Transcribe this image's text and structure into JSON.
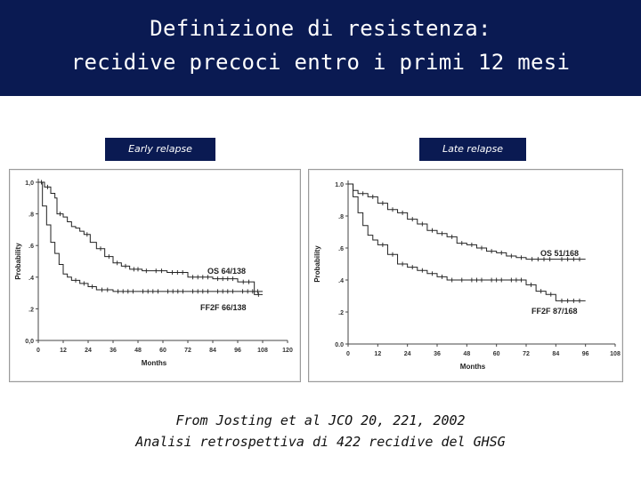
{
  "title": {
    "line1": "Definizione di resistenza:",
    "line2": "recidive precoci entro i primi 12 mesi"
  },
  "panel_labels": {
    "left": "Early relapse",
    "right": "Late relapse"
  },
  "source": {
    "line1": "From Josting et al JCO 20, 221, 2002",
    "line2": "Analisi retrospettiva di 422 recidive del GHSG"
  },
  "colors": {
    "header_bg": "#0a1a52",
    "header_text": "#ffffff",
    "curve": "#222222"
  },
  "chart_data": [
    {
      "type": "line",
      "title": "Early relapse",
      "xlabel": "Months",
      "ylabel": "Probability",
      "xlim": [
        0,
        120
      ],
      "ylim": [
        0,
        1
      ],
      "x_ticks": [
        "0",
        "12",
        "24",
        "36",
        "48",
        "60",
        "72",
        "84",
        "96",
        "108",
        "120"
      ],
      "y_ticks": [
        "0,0",
        ".2",
        ".4",
        ".6",
        ".8",
        "1,0"
      ],
      "grid": false,
      "series": [
        {
          "name": "OS 64/138",
          "x": [
            0,
            3,
            6,
            8,
            9,
            12,
            14,
            16,
            18,
            20,
            22,
            25,
            28,
            32,
            36,
            40,
            44,
            50,
            54,
            62,
            72,
            84,
            96,
            104,
            108
          ],
          "y": [
            1.0,
            0.97,
            0.93,
            0.9,
            0.8,
            0.78,
            0.75,
            0.72,
            0.71,
            0.69,
            0.67,
            0.62,
            0.58,
            0.53,
            0.49,
            0.47,
            0.45,
            0.44,
            0.44,
            0.43,
            0.4,
            0.39,
            0.37,
            0.29,
            0.29
          ]
        },
        {
          "name": "FF2F 66/138",
          "x": [
            0,
            2,
            4,
            6,
            8,
            10,
            12,
            14,
            16,
            20,
            24,
            28,
            36,
            48,
            60,
            72,
            84,
            96,
            108
          ],
          "y": [
            1.0,
            0.85,
            0.73,
            0.62,
            0.55,
            0.48,
            0.42,
            0.4,
            0.38,
            0.36,
            0.34,
            0.32,
            0.31,
            0.31,
            0.31,
            0.31,
            0.31,
            0.31,
            0.31
          ]
        }
      ]
    },
    {
      "type": "line",
      "title": "Late relapse",
      "xlabel": "Months",
      "ylabel": "Probability",
      "xlim": [
        0,
        108
      ],
      "ylim": [
        0,
        1
      ],
      "x_ticks": [
        "0",
        "12",
        "24",
        "36",
        "48",
        "60",
        "72",
        "84",
        "96",
        "108"
      ],
      "y_ticks": [
        "0.0",
        ".2",
        ".4",
        ".6",
        ".8",
        "1.0"
      ],
      "grid": false,
      "series": [
        {
          "name": "OS 51/168",
          "x": [
            0,
            2,
            4,
            8,
            12,
            16,
            20,
            24,
            28,
            32,
            36,
            40,
            44,
            48,
            52,
            56,
            60,
            64,
            68,
            72,
            84,
            96
          ],
          "y": [
            1.0,
            0.96,
            0.94,
            0.92,
            0.88,
            0.84,
            0.82,
            0.78,
            0.75,
            0.71,
            0.69,
            0.67,
            0.63,
            0.62,
            0.6,
            0.58,
            0.57,
            0.55,
            0.54,
            0.53,
            0.53,
            0.53
          ]
        },
        {
          "name": "FF2F 87/168",
          "x": [
            0,
            2,
            4,
            6,
            8,
            10,
            12,
            16,
            20,
            24,
            28,
            32,
            36,
            40,
            44,
            48,
            56,
            64,
            72,
            76,
            80,
            84,
            96
          ],
          "y": [
            1.0,
            0.92,
            0.82,
            0.74,
            0.68,
            0.65,
            0.62,
            0.56,
            0.5,
            0.48,
            0.46,
            0.44,
            0.42,
            0.4,
            0.4,
            0.4,
            0.4,
            0.4,
            0.37,
            0.33,
            0.31,
            0.27,
            0.27
          ]
        }
      ]
    }
  ]
}
